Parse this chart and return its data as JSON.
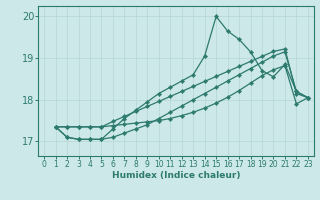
{
  "xlabel": "Humidex (Indice chaleur)",
  "xlim": [
    -0.5,
    23.5
  ],
  "ylim": [
    16.65,
    20.25
  ],
  "yticks": [
    17,
    18,
    19,
    20
  ],
  "xticks": [
    0,
    1,
    2,
    3,
    4,
    5,
    6,
    7,
    8,
    9,
    10,
    11,
    12,
    13,
    14,
    15,
    16,
    17,
    18,
    19,
    20,
    21,
    22,
    23
  ],
  "bg_color": "#cce8e8",
  "grid_color": "#aad4d4",
  "line_color": "#2d7a6e",
  "series": [
    {
      "x": [
        1,
        2,
        3,
        4,
        5,
        6,
        7,
        8,
        9,
        10,
        11,
        12,
        13,
        14,
        15,
        16,
        17,
        18,
        19,
        20,
        21,
        22,
        23
      ],
      "y": [
        17.35,
        17.1,
        17.05,
        17.05,
        17.05,
        17.3,
        17.55,
        17.75,
        17.95,
        18.15,
        18.3,
        18.45,
        18.6,
        19.05,
        20.0,
        19.65,
        19.45,
        19.15,
        18.7,
        18.55,
        18.85,
        18.2,
        18.05
      ]
    },
    {
      "x": [
        1,
        2,
        3,
        4,
        5,
        6,
        7,
        8,
        9,
        10,
        11,
        12,
        13,
        14,
        15,
        16,
        17,
        18,
        19,
        20,
        21,
        22,
        23
      ],
      "y": [
        17.35,
        17.35,
        17.35,
        17.35,
        17.35,
        17.48,
        17.6,
        17.72,
        17.84,
        17.96,
        18.08,
        18.2,
        18.32,
        18.44,
        18.56,
        18.68,
        18.8,
        18.92,
        19.04,
        19.16,
        19.22,
        18.15,
        18.05
      ]
    },
    {
      "x": [
        1,
        2,
        3,
        4,
        5,
        6,
        7,
        8,
        9,
        10,
        11,
        12,
        13,
        14,
        15,
        16,
        17,
        18,
        19,
        20,
        21,
        22,
        23
      ],
      "y": [
        17.35,
        17.1,
        17.05,
        17.05,
        17.05,
        17.1,
        17.2,
        17.3,
        17.4,
        17.55,
        17.7,
        17.85,
        18.0,
        18.15,
        18.3,
        18.45,
        18.6,
        18.75,
        18.9,
        19.05,
        19.15,
        18.2,
        18.05
      ]
    },
    {
      "x": [
        1,
        2,
        3,
        4,
        5,
        6,
        7,
        8,
        9,
        10,
        11,
        12,
        13,
        14,
        15,
        16,
        17,
        18,
        19,
        20,
        21,
        22,
        23
      ],
      "y": [
        17.35,
        17.35,
        17.35,
        17.35,
        17.35,
        17.38,
        17.41,
        17.44,
        17.47,
        17.5,
        17.55,
        17.62,
        17.7,
        17.8,
        17.92,
        18.06,
        18.22,
        18.4,
        18.58,
        18.72,
        18.82,
        17.9,
        18.05
      ]
    }
  ]
}
